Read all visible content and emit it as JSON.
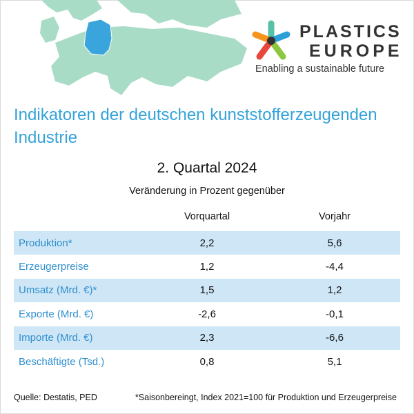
{
  "colors": {
    "title": "#35a3d9",
    "row_label": "#2e8fce",
    "row_shade": "#cfe6f6",
    "map_land": "#a9dcc6",
    "map_germany": "#3aa5dd"
  },
  "map": {
    "icon": "europe-map-germany-highlighted"
  },
  "logo": {
    "icon": "plastics-europe-star-icon",
    "line1": "PLASTICS",
    "line2": "EUROPE",
    "tagline": "Enabling a sustainable future"
  },
  "title": "Indikatoren der deutschen kunststofferzeugenden Industrie",
  "quarter": "2. Quartal 2024",
  "subtitle": "Veränderung in Prozent gegenüber",
  "columns": [
    "Vorquartal",
    "Vorjahr"
  ],
  "rows": [
    {
      "label": "Produktion*",
      "vorquartal": "2,2",
      "vorjahr": "5,6",
      "shaded": true
    },
    {
      "label": "Erzeugerpreise",
      "vorquartal": "1,2",
      "vorjahr": "-4,4",
      "shaded": false
    },
    {
      "label": "Umsatz (Mrd. €)*",
      "vorquartal": "1,5",
      "vorjahr": "1,2",
      "shaded": true
    },
    {
      "label": "Exporte (Mrd. €)",
      "vorquartal": "-2,6",
      "vorjahr": "-0,1",
      "shaded": false
    },
    {
      "label": "Importe (Mrd. €)",
      "vorquartal": "2,3",
      "vorjahr": "-6,6",
      "shaded": true
    },
    {
      "label": "Beschäftigte (Tsd.)",
      "vorquartal": "0,8",
      "vorjahr": "5,1",
      "shaded": false
    }
  ],
  "footer": {
    "source": "Quelle: Destatis, PED",
    "note": "*Saisonbereingt, Index 2021=100 für Produktion und Erzeugerpreise"
  }
}
